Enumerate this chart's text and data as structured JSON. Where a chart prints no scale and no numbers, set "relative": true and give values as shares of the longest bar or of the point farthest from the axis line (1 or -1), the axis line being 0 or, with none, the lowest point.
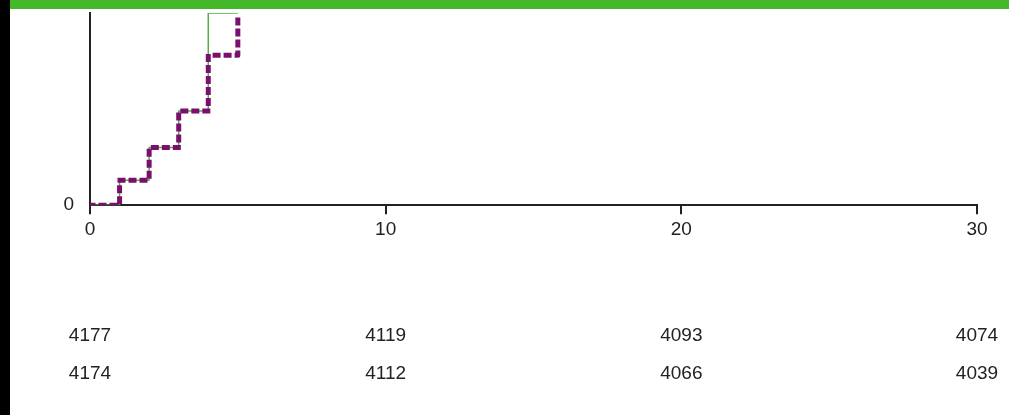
{
  "chart_data": {
    "type": "step",
    "relative": true,
    "x": [
      0,
      1,
      2,
      3,
      4,
      5
    ],
    "series": [
      {
        "color": "#52b041",
        "line_style": "solid",
        "values": [
          0,
          0.13,
          0.3,
          0.49,
          1,
          1
        ]
      },
      {
        "color": "#7a0f6e",
        "line_style": "dotted",
        "values": [
          0,
          0.13,
          0.3,
          0.49,
          0.78,
          0.97
        ]
      }
    ],
    "xlim": [
      0,
      30
    ],
    "xticks": [
      0,
      10,
      20,
      30
    ],
    "grid": false,
    "legend": false,
    "marker": "none",
    "annotations": [
      "0",
      "4177",
      "4119",
      "4093",
      "4074",
      "4174",
      "4112",
      "4066",
      "4039"
    ]
  }
}
